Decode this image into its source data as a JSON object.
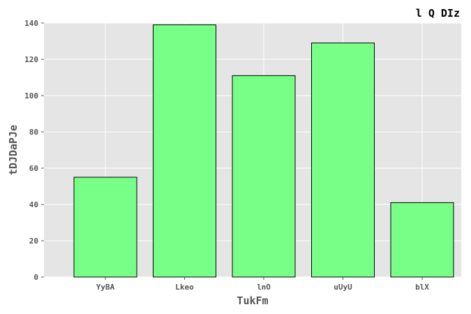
{
  "chart_data": {
    "type": "bar",
    "title": "l Q DIz",
    "xlabel": "TukFm",
    "ylabel": "tDJDaPJe",
    "categories": [
      "YyBA",
      "Lkeo",
      "lnO",
      "uUyU",
      "blX"
    ],
    "values": [
      55,
      139,
      111,
      129,
      41
    ],
    "ylim": [
      0,
      140
    ],
    "yticks": [
      0,
      20,
      40,
      60,
      80,
      100,
      120,
      140
    ],
    "grid": true,
    "colors": {
      "bar_fill": "#77ff88",
      "bar_edge": "#000000",
      "plot_background": "#e5e5e5",
      "grid": "#ffffff",
      "tick_text": "#555555"
    }
  }
}
